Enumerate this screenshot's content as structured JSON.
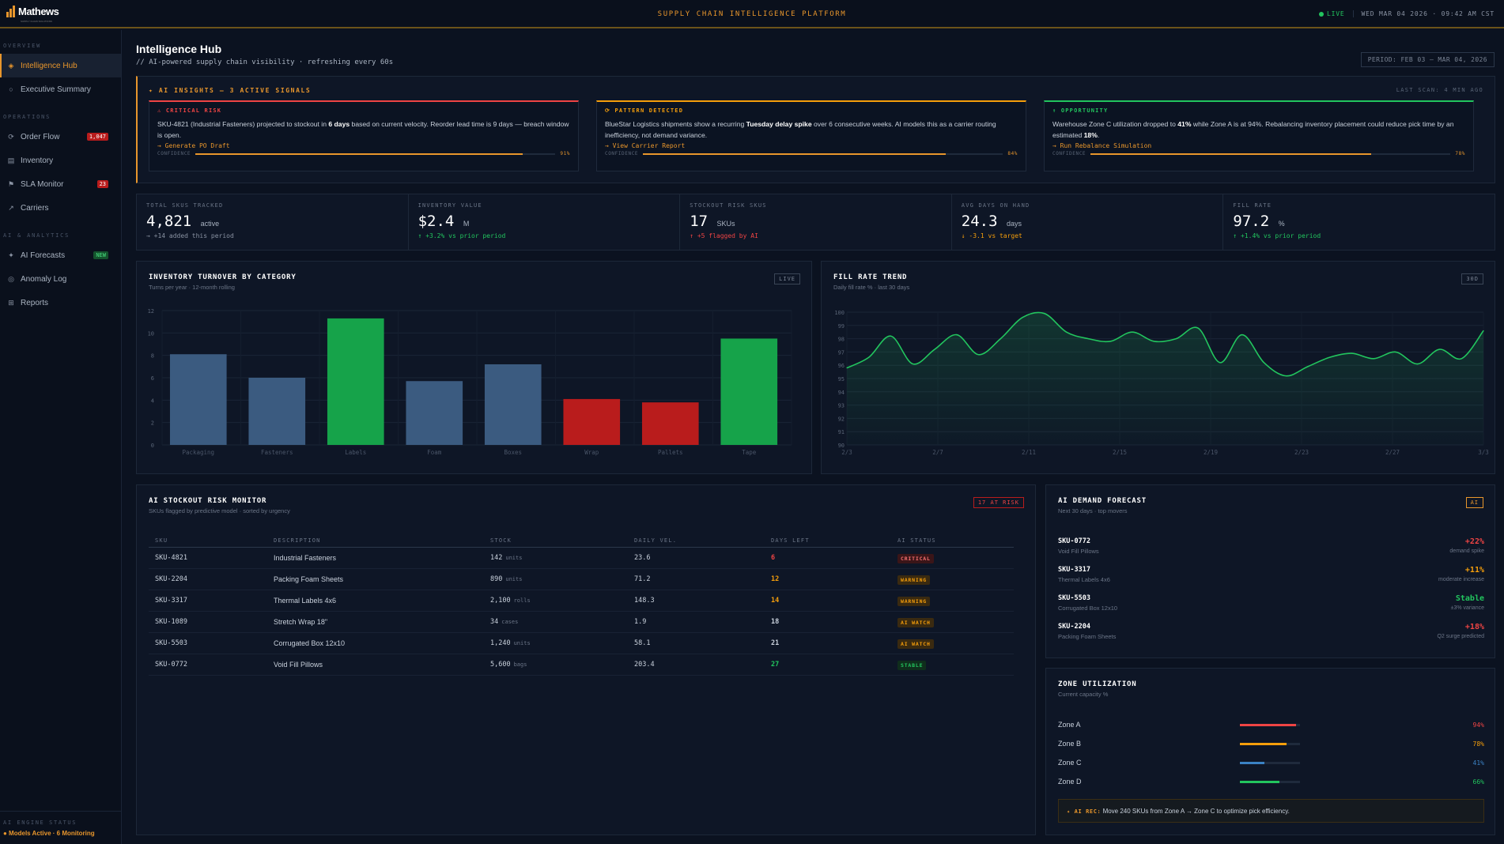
{
  "topbar": {
    "logo": "Mathews",
    "logo_tagline": "SUPPLY CHAIN SOLUTIONS",
    "platform": "SUPPLY CHAIN INTELLIGENCE PLATFORM",
    "live": "LIVE",
    "datetime": "WED MAR 04 2026 · 09:42 AM CST"
  },
  "sidebar": {
    "sections": [
      {
        "title": "OVERVIEW",
        "items": [
          {
            "label": "Intelligence Hub",
            "icon": "diamond-icon",
            "active": true
          },
          {
            "label": "Executive Summary",
            "icon": "circle-icon"
          }
        ]
      },
      {
        "title": "OPERATIONS",
        "items": [
          {
            "label": "Order Flow",
            "icon": "refresh-icon",
            "badge": "1,047"
          },
          {
            "label": "Inventory",
            "icon": "grid-icon"
          },
          {
            "label": "SLA Monitor",
            "icon": "flag-icon",
            "badge": "23"
          },
          {
            "label": "Carriers",
            "icon": "arrow-icon"
          }
        ]
      },
      {
        "title": "AI & ANALYTICS",
        "items": [
          {
            "label": "AI Forecasts",
            "icon": "sparkle-icon",
            "badge": "NEW"
          },
          {
            "label": "Anomaly Log",
            "icon": "target-icon"
          },
          {
            "label": "Reports",
            "icon": "table-icon"
          }
        ]
      }
    ],
    "engine_title": "AI ENGINE STATUS",
    "engine_status": "● Models Active · 6 Monitoring"
  },
  "page": {
    "title": "Intelligence Hub",
    "subtitle": "// AI-powered supply chain visibility · refreshing every 60s",
    "period": "PERIOD: FEB 03 — MAR 04, 2026"
  },
  "insights": {
    "title": "✦ AI INSIGHTS — 3 ACTIVE SIGNALS",
    "last_scan": "LAST SCAN: 4 MIN AGO",
    "cards": [
      {
        "label": "⚠ CRITICAL RISK",
        "color": "#ef4444",
        "text_before": "SKU-4821 (Industrial Fasteners) projected to stockout in ",
        "text_bold": "6 days",
        "text_after": " based on current velocity. Reorder lead time is 9 days — breach window is open.",
        "action": "→ Generate PO Draft",
        "confidence_label": "CONFIDENCE",
        "confidence": 91,
        "confidence_text": "91%"
      },
      {
        "label": "⟳ PATTERN DETECTED",
        "color": "#f59e0b",
        "text_before": "BlueStar Logistics shipments show a recurring ",
        "text_bold": "Tuesday delay spike",
        "text_after": " over 6 consecutive weeks. AI models this as a carrier routing inefficiency, not demand variance.",
        "action": "→ View Carrier Report",
        "confidence_label": "CONFIDENCE",
        "confidence": 84,
        "confidence_text": "84%"
      },
      {
        "label": "↑ OPPORTUNITY",
        "color": "#22c55e",
        "text_before": "Warehouse Zone C utilization dropped to ",
        "text_bold": "41%",
        "text_after": " while Zone A is at 94%. Rebalancing inventory placement could reduce pick time by an estimated ",
        "text_bold2": "18%",
        "text_end": ".",
        "action": "→ Run Rebalance Simulation",
        "confidence_label": "CONFIDENCE",
        "confidence": 78,
        "confidence_text": "78%"
      }
    ]
  },
  "kpis": [
    {
      "label": "TOTAL SKUS TRACKED",
      "value": "4,821",
      "unit": "active",
      "delta": "→ +14 added this period",
      "tone": "neutral"
    },
    {
      "label": "INVENTORY VALUE",
      "value": "$2.4",
      "unit": "M",
      "delta": "↑ +3.2% vs prior period",
      "tone": "up"
    },
    {
      "label": "STOCKOUT RISK SKUS",
      "value": "17",
      "unit": "SKUs",
      "delta": "↑ +5 flagged by AI",
      "tone": "red"
    },
    {
      "label": "AVG DAYS ON HAND",
      "value": "24.3",
      "unit": "days",
      "delta": "↓ -3.1 vs target",
      "tone": "down"
    },
    {
      "label": "FILL RATE",
      "value": "97.2",
      "unit": "%",
      "delta": "↑ +1.4% vs prior period",
      "tone": "up"
    }
  ],
  "turnover": {
    "title": "INVENTORY TURNOVER BY CATEGORY",
    "subtitle": "Turns per year · 12-month rolling",
    "tag": "LIVE"
  },
  "fillrate": {
    "title": "FILL RATE TREND",
    "subtitle": "Daily fill rate % · last 30 days",
    "tag": "30D"
  },
  "chart_data": [
    {
      "type": "bar",
      "categories": [
        "Packaging",
        "Fasteners",
        "Labels",
        "Foam",
        "Boxes",
        "Wrap",
        "Pallets",
        "Tape"
      ],
      "values": [
        8.1,
        6.0,
        11.3,
        5.7,
        7.2,
        4.1,
        3.8,
        9.5
      ],
      "colors": [
        "#3b5b80",
        "#3b5b80",
        "#16a34a",
        "#3b5b80",
        "#3b5b80",
        "#b91c1c",
        "#b91c1c",
        "#16a34a"
      ],
      "yticks": [
        "0",
        "2",
        "4",
        "6",
        "8",
        "10",
        "12"
      ],
      "ylim": [
        0,
        12
      ],
      "grid": true
    },
    {
      "type": "line",
      "x_ticks": [
        "2/3",
        "2/7",
        "2/11",
        "2/15",
        "2/19",
        "2/23",
        "2/27",
        "3/3"
      ],
      "y_ticks": [
        "90",
        "91",
        "92",
        "93",
        "94",
        "95",
        "96",
        "97",
        "98",
        "99",
        "100"
      ],
      "ylim": [
        90,
        100
      ],
      "color": "#22c55e",
      "values": [
        95.8,
        96.6,
        98.2,
        96.1,
        97.2,
        98.3,
        96.8,
        98.0,
        99.6,
        99.9,
        98.5,
        98.0,
        97.8,
        98.5,
        97.8,
        98.0,
        98.8,
        96.2,
        98.3,
        96.2,
        95.2,
        95.9,
        96.6,
        96.9,
        96.5,
        97.0,
        96.1,
        97.2,
        96.5,
        98.6
      ],
      "grid": true
    }
  ],
  "risk": {
    "title": "AI STOCKOUT RISK MONITOR",
    "subtitle": "SKUs flagged by predictive model · sorted by urgency",
    "tag": "17 AT RISK",
    "columns": [
      "SKU",
      "DESCRIPTION",
      "STOCK",
      "DAILY VEL.",
      "DAYS LEFT",
      "AI STATUS"
    ],
    "rows": [
      {
        "sku": "SKU-4821",
        "desc": "Industrial Fasteners",
        "stock": "142",
        "unit": "units",
        "vel": "23.6",
        "days": "6",
        "days_color": "#ef4444",
        "status": "CRITICAL",
        "cls": "critical"
      },
      {
        "sku": "SKU-2204",
        "desc": "Packing Foam Sheets",
        "stock": "890",
        "unit": "units",
        "vel": "71.2",
        "days": "12",
        "days_color": "#f59e0b",
        "status": "WARNING",
        "cls": "warning"
      },
      {
        "sku": "SKU-3317",
        "desc": "Thermal Labels 4x6",
        "stock": "2,100",
        "unit": "rolls",
        "vel": "148.3",
        "days": "14",
        "days_color": "#f59e0b",
        "status": "WARNING",
        "cls": "warning"
      },
      {
        "sku": "SKU-1089",
        "desc": "Stretch Wrap 18\"",
        "stock": "34",
        "unit": "cases",
        "vel": "1.9",
        "days": "18",
        "days_color": "#c9d1dc",
        "status": "AI WATCH",
        "cls": "watch"
      },
      {
        "sku": "SKU-5503",
        "desc": "Corrugated Box 12x10",
        "stock": "1,240",
        "unit": "units",
        "vel": "58.1",
        "days": "21",
        "days_color": "#c9d1dc",
        "status": "AI WATCH",
        "cls": "watch"
      },
      {
        "sku": "SKU-0772",
        "desc": "Void Fill Pillows",
        "stock": "5,600",
        "unit": "bags",
        "vel": "203.4",
        "days": "27",
        "days_color": "#22c55e",
        "status": "STABLE",
        "cls": "stable"
      }
    ]
  },
  "forecast": {
    "title": "AI DEMAND FORECAST",
    "subtitle": "Next 30 days · top movers",
    "tag": "AI",
    "rows": [
      {
        "sku": "SKU-0772",
        "desc": "Void Fill Pillows",
        "pct": "+22%",
        "note": "demand spike",
        "color": "#ef4444"
      },
      {
        "sku": "SKU-3317",
        "desc": "Thermal Labels 4x6",
        "pct": "+11%",
        "note": "moderate increase",
        "color": "#f59e0b"
      },
      {
        "sku": "SKU-5503",
        "desc": "Corrugated Box 12x10",
        "pct": "Stable",
        "note": "±3% variance",
        "color": "#22c55e"
      },
      {
        "sku": "SKU-2204",
        "desc": "Packing Foam Sheets",
        "pct": "+18%",
        "note": "Q2 surge predicted",
        "color": "#ef4444"
      }
    ]
  },
  "zones": {
    "title": "ZONE UTILIZATION",
    "subtitle": "Current capacity %",
    "rows": [
      {
        "name": "Zone A",
        "pct": "94%",
        "value": 0.94,
        "color": "#ef4444"
      },
      {
        "name": "Zone B",
        "pct": "78%",
        "value": 0.78,
        "color": "#f59e0b"
      },
      {
        "name": "Zone C",
        "pct": "41%",
        "value": 0.41,
        "color": "#3b82c4"
      },
      {
        "name": "Zone D",
        "pct": "66%",
        "value": 0.66,
        "color": "#22c55e"
      }
    ],
    "rec_label": "✦ AI REC:",
    "rec_text": " Move 240 SKUs from Zone A → Zone C to optimize pick efficiency."
  }
}
